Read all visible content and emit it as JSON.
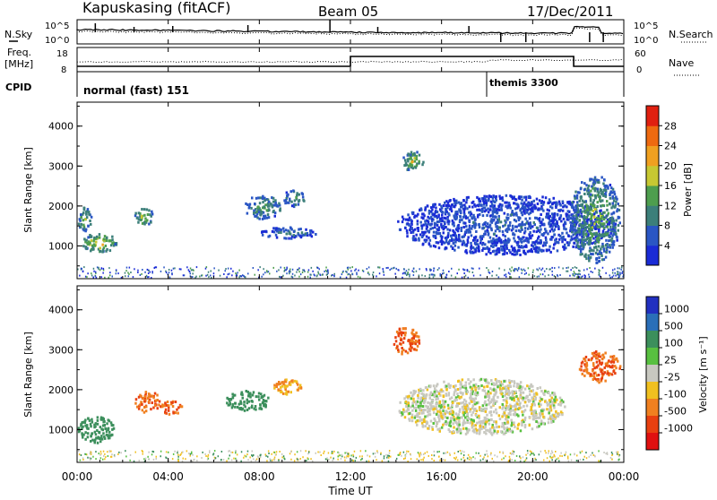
{
  "header": {
    "station": "Kapuskasing (fitACF)",
    "beam": "Beam 05",
    "date": "17/Dec/2011"
  },
  "top_panel": {
    "left_label": "N.Sky",
    "right_label": "N.Search",
    "left_ticks": [
      "10^5",
      "10^0"
    ],
    "right_ticks": [
      "10^5",
      "10^0"
    ]
  },
  "freq_panel": {
    "left_label_line1": "Freq.",
    "left_label_line2": "[MHz]",
    "right_label": "Nave",
    "left_ticks": [
      "18",
      "8"
    ],
    "right_ticks": [
      "60",
      "0"
    ]
  },
  "cpid": {
    "label": "CPID",
    "mode1": "normal (fast) 151",
    "mode2": "themis 3300"
  },
  "x_axis": {
    "ticks": [
      "00:00",
      "04:00",
      "08:00",
      "12:00",
      "16:00",
      "20:00",
      "00:00"
    ],
    "label": "Time UT"
  },
  "power_panel": {
    "ylabel": "Slant Range [km]",
    "yticks": [
      "1000",
      "2000",
      "3000",
      "4000"
    ],
    "colorbar_label": "Power [dB]",
    "colorbar_ticks": [
      "4",
      "8",
      "12",
      "16",
      "20",
      "24",
      "28"
    ],
    "colors": [
      "#1a2bd6",
      "#2a56c4",
      "#3c7f7a",
      "#4e9e4e",
      "#c7c832",
      "#f0a020",
      "#ee6a10",
      "#e02010"
    ]
  },
  "velocity_panel": {
    "ylabel": "Slant Range [km]",
    "yticks": [
      "1000",
      "2000",
      "3000",
      "4000"
    ],
    "colorbar_label": "Velocity [m s⁻¹]",
    "colorbar_ticks": [
      "1000",
      "500",
      "100",
      "25",
      "-25",
      "-100",
      "-500",
      "-1000"
    ],
    "colors": [
      "#2130c0",
      "#2a6fb8",
      "#3c8f5c",
      "#58c040",
      "#c8c8c0",
      "#f0c020",
      "#f08020",
      "#e84010",
      "#e01010"
    ]
  },
  "chart_data": [
    {
      "type": "heatmap",
      "title": "Power",
      "xlabel": "Time UT",
      "ylabel": "Slant Range [km]",
      "x_range_hours": [
        0,
        24
      ],
      "ylim_km": [
        180,
        4600
      ],
      "zlabel": "Power [dB]",
      "zlim": [
        0,
        30
      ],
      "echo_regions": [
        {
          "t": [
            0.2,
            1.7
          ],
          "r": [
            850,
            1350
          ],
          "power_db": 18
        },
        {
          "t": [
            0.0,
            0.6
          ],
          "r": [
            1400,
            2000
          ],
          "power_db": 14
        },
        {
          "t": [
            2.5,
            3.3
          ],
          "r": [
            1500,
            2000
          ],
          "power_db": 16
        },
        {
          "t": [
            7.3,
            8.9
          ],
          "r": [
            1700,
            2300
          ],
          "power_db": 12
        },
        {
          "t": [
            9.0,
            10.0
          ],
          "r": [
            2000,
            2450
          ],
          "power_db": 12
        },
        {
          "t": [
            8.0,
            10.5
          ],
          "r": [
            1200,
            1500
          ],
          "power_db": 8
        },
        {
          "t": [
            14.0,
            23.6
          ],
          "r": [
            800,
            2300
          ],
          "power_db": 6
        },
        {
          "t": [
            14.2,
            15.2
          ],
          "r": [
            2900,
            3400
          ],
          "power_db": 16
        },
        {
          "t": [
            21.6,
            23.8
          ],
          "r": [
            600,
            2800
          ],
          "power_db": 14
        }
      ]
    },
    {
      "type": "heatmap",
      "title": "Velocity",
      "xlabel": "Time UT",
      "ylabel": "Slant Range [km]",
      "x_range_hours": [
        0,
        24
      ],
      "ylim_km": [
        180,
        4600
      ],
      "zlabel": "Velocity [m s⁻¹]",
      "zlim": [
        -1000,
        1000
      ],
      "echo_regions": [
        {
          "t": [
            0.0,
            1.6
          ],
          "r": [
            700,
            1350
          ],
          "velocity": 100
        },
        {
          "t": [
            2.5,
            3.6
          ],
          "r": [
            1450,
            2000
          ],
          "velocity": -500
        },
        {
          "t": [
            3.6,
            4.6
          ],
          "r": [
            1400,
            1750
          ],
          "velocity": -500
        },
        {
          "t": [
            6.5,
            8.5
          ],
          "r": [
            1500,
            2000
          ],
          "velocity": 100
        },
        {
          "t": [
            8.6,
            9.8
          ],
          "r": [
            1900,
            2300
          ],
          "velocity": -100
        },
        {
          "t": [
            14.0,
            21.4
          ],
          "r": [
            900,
            2300
          ],
          "velocity": 0
        },
        {
          "t": [
            13.8,
            15.0
          ],
          "r": [
            2900,
            3600
          ],
          "velocity": -500
        },
        {
          "t": [
            22.0,
            23.8
          ],
          "r": [
            2200,
            3000
          ],
          "velocity": -500
        }
      ]
    }
  ]
}
